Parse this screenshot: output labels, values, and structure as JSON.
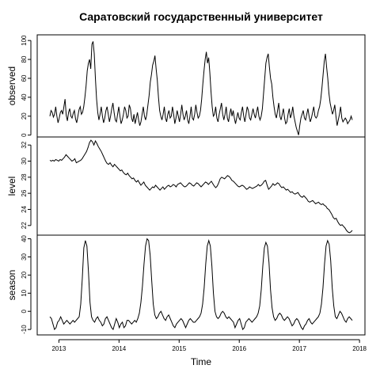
{
  "chart_data": {
    "type": "line",
    "title": "Саратовский государственный университет",
    "xlabel": "Time",
    "x_ticks": [
      "2013",
      "2014",
      "2015",
      "2016",
      "2017",
      "2018"
    ],
    "x_range": [
      2012.85,
      2017.88
    ],
    "panels": [
      {
        "name": "observed",
        "ylabel": "observed",
        "ylim": [
          -2,
          106
        ],
        "yticks": [
          "0",
          "20",
          "40",
          "60",
          "80",
          "100"
        ],
        "values": [
          20,
          26,
          24,
          19,
          22,
          30,
          20,
          13,
          18,
          24,
          26,
          22,
          30,
          38,
          21,
          15,
          24,
          28,
          20,
          18,
          23,
          26,
          17,
          13,
          20,
          27,
          30,
          22,
          24,
          30,
          40,
          52,
          68,
          76,
          80,
          70,
          96,
          99,
          86,
          60,
          38,
          24,
          16,
          22,
          30,
          20,
          13,
          18,
          26,
          30,
          22,
          14,
          20,
          28,
          34,
          24,
          16,
          14,
          22,
          30,
          20,
          12,
          16,
          22,
          30,
          26,
          18,
          20,
          32,
          28,
          18,
          14,
          22,
          12,
          18,
          24,
          16,
          10,
          14,
          22,
          30,
          20,
          16,
          22,
          32,
          42,
          56,
          64,
          74,
          78,
          84,
          70,
          58,
          40,
          26,
          20,
          16,
          22,
          30,
          18,
          14,
          22,
          26,
          18,
          20,
          30,
          22,
          12,
          18,
          26,
          20,
          14,
          22,
          32,
          22,
          16,
          20,
          26,
          16,
          12,
          20,
          30,
          18,
          16,
          22,
          32,
          24,
          18,
          20,
          26,
          38,
          54,
          68,
          80,
          88,
          76,
          82,
          66,
          46,
          30,
          20,
          22,
          30,
          18,
          14,
          22,
          28,
          34,
          22,
          16,
          22,
          30,
          18,
          14,
          22,
          28,
          20,
          26,
          18,
          12,
          18,
          24,
          18,
          16,
          24,
          30,
          20,
          14,
          22,
          30,
          26,
          18,
          16,
          22,
          28,
          22,
          18,
          24,
          30,
          20,
          16,
          20,
          28,
          44,
          60,
          76,
          82,
          86,
          72,
          60,
          54,
          40,
          30,
          22,
          18,
          26,
          34,
          20,
          16,
          22,
          28,
          18,
          12,
          14,
          22,
          28,
          18,
          22,
          30,
          20,
          14,
          8,
          4,
          0,
          10,
          18,
          22,
          26,
          18,
          16,
          22,
          28,
          20,
          14,
          18,
          24,
          30,
          20,
          18,
          20,
          26,
          30,
          38,
          50,
          64,
          78,
          86,
          72,
          60,
          44,
          34,
          28,
          22,
          26,
          32,
          20,
          10,
          16,
          22,
          30,
          18,
          14,
          16,
          18,
          16,
          12,
          14,
          16,
          20,
          16
        ]
      },
      {
        "name": "level",
        "ylabel": "level",
        "ylim": [
          20.8,
          33.0
        ],
        "yticks": [
          "22",
          "24",
          "26",
          "28",
          "30",
          "32"
        ],
        "values": [
          30.1,
          30.0,
          30.1,
          30.0,
          30.2,
          30.1,
          30.0,
          30.2,
          30.1,
          30.3,
          30.5,
          30.8,
          30.6,
          30.4,
          30.2,
          30.0,
          30.1,
          30.3,
          29.8,
          29.9,
          30.0,
          30.1,
          30.3,
          30.6,
          30.9,
          31.2,
          31.7,
          32.3,
          32.6,
          32.4,
          32.0,
          32.5,
          32.2,
          31.8,
          31.5,
          31.2,
          30.8,
          30.4,
          30.0,
          29.7,
          29.6,
          29.8,
          29.5,
          29.3,
          29.6,
          29.4,
          29.2,
          29.0,
          28.8,
          28.9,
          28.6,
          28.4,
          28.3,
          28.5,
          28.2,
          28.0,
          27.8,
          27.9,
          27.6,
          27.4,
          27.6,
          27.3,
          27.0,
          27.2,
          27.4,
          27.0,
          26.8,
          26.6,
          26.4,
          26.6,
          26.8,
          26.7,
          27.0,
          26.8,
          26.6,
          26.4,
          26.6,
          26.8,
          26.5,
          26.7,
          26.9,
          27.0,
          26.8,
          26.9,
          27.1,
          27.0,
          26.8,
          27.1,
          27.2,
          27.3,
          27.1,
          26.9,
          26.8,
          26.9,
          27.1,
          27.3,
          27.2,
          27.0,
          26.9,
          27.1,
          27.3,
          27.2,
          27.0,
          26.8,
          27.0,
          27.2,
          27.4,
          27.3,
          27.1,
          27.3,
          27.5,
          27.2,
          26.9,
          26.7,
          26.9,
          27.3,
          27.8,
          28.0,
          27.9,
          27.8,
          28.0,
          28.2,
          28.1,
          27.9,
          27.6,
          27.5,
          27.3,
          27.1,
          26.9,
          26.8,
          26.9,
          27.0,
          26.9,
          26.7,
          26.5,
          26.6,
          26.8,
          26.7,
          26.6,
          26.7,
          26.8,
          26.9,
          27.1,
          26.9,
          27.0,
          27.2,
          27.5,
          27.6,
          27.0,
          26.5,
          26.7,
          26.9,
          27.2,
          27.0,
          27.1,
          27.3,
          27.2,
          26.9,
          26.7,
          26.8,
          26.6,
          26.4,
          26.5,
          26.3,
          26.1,
          26.2,
          26.0,
          25.9,
          26.0,
          26.1,
          25.8,
          25.6,
          25.5,
          25.7,
          25.5,
          25.3,
          25.0,
          24.9,
          25.0,
          25.1,
          24.9,
          24.7,
          24.8,
          24.9,
          24.7,
          24.6,
          24.7,
          24.5,
          24.4,
          24.1,
          24.0,
          23.7,
          23.4,
          23.0,
          22.8,
          22.9,
          22.5,
          22.2,
          22.0,
          22.1,
          21.9,
          21.7,
          21.4,
          21.2,
          21.1,
          21.2,
          21.4
        ]
      },
      {
        "name": "season",
        "ylabel": "season",
        "ylim": [
          -13,
          42
        ],
        "yticks": [
          "-10",
          "0",
          "10",
          "20",
          "30",
          "40"
        ],
        "values": [
          -3,
          -4,
          -7,
          -10,
          -9,
          -6,
          -5,
          -3,
          -5,
          -7,
          -6,
          -5,
          -6,
          -7,
          -6,
          -5,
          -6,
          -5,
          -4,
          -3,
          4,
          18,
          35,
          39,
          36,
          22,
          5,
          -3,
          -5,
          -6,
          -4,
          -3,
          -5,
          -6,
          -8,
          -7,
          -4,
          -3,
          -5,
          -7,
          -9,
          -10,
          -7,
          -4,
          -6,
          -9,
          -7,
          -6,
          -9,
          -8,
          -5,
          -5,
          -6,
          -7,
          -6,
          -5,
          -6,
          -4,
          -1,
          5,
          14,
          26,
          36,
          40,
          39,
          31,
          17,
          4,
          -2,
          -4,
          -3,
          -1,
          0,
          -2,
          -4,
          -5,
          -3,
          -2,
          -4,
          -6,
          -8,
          -9,
          -7,
          -6,
          -5,
          -4,
          -5,
          -7,
          -9,
          -7,
          -5,
          -4,
          -5,
          -6,
          -6,
          -5,
          -4,
          -3,
          -1,
          4,
          13,
          26,
          36,
          39,
          36,
          25,
          10,
          0,
          -3,
          -4,
          -3,
          -1,
          0,
          -1,
          -3,
          -4,
          -3,
          -4,
          -5,
          -6,
          -9,
          -7,
          -5,
          -4,
          -7,
          -10,
          -9,
          -6,
          -5,
          -4,
          -5,
          -6,
          -5,
          -4,
          -3,
          -1,
          3,
          12,
          25,
          35,
          38,
          36,
          27,
          12,
          2,
          -3,
          -5,
          -4,
          -2,
          -1,
          -2,
          -4,
          -5,
          -4,
          -3,
          -4,
          -6,
          -8,
          -7,
          -5,
          -4,
          -5,
          -7,
          -9,
          -10,
          -8,
          -7,
          -5,
          -4,
          -6,
          -7,
          -6,
          -5,
          -4,
          -3,
          -1,
          4,
          13,
          26,
          36,
          39,
          37,
          28,
          13,
          3,
          -3,
          -4,
          -2,
          0,
          -1,
          -3,
          -5,
          -6,
          -4,
          -3,
          -4,
          -5
        ]
      }
    ]
  }
}
